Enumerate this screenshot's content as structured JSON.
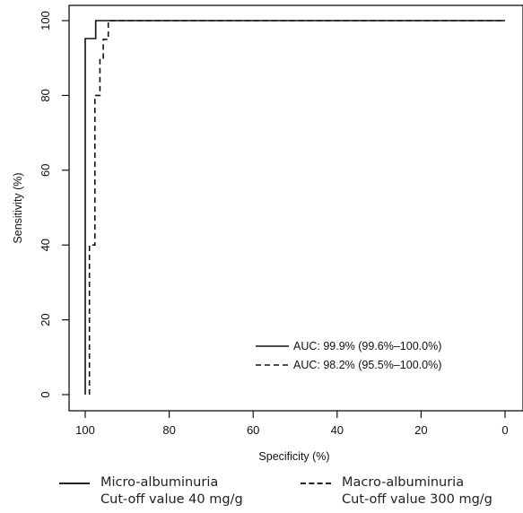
{
  "chart_data": {
    "type": "line",
    "xlabel": "Specificity (%)",
    "ylabel": "Sensitivity (%)",
    "xlim": [
      100,
      0
    ],
    "ylim": [
      0,
      100
    ],
    "x_reversed": true,
    "xticks": [
      "100",
      "80",
      "60",
      "40",
      "20",
      "0"
    ],
    "yticks": [
      "0",
      "20",
      "40",
      "60",
      "80",
      "100"
    ],
    "grid": false,
    "legend_position": "bottom-right",
    "series": [
      {
        "name": "AUC: 99.9% (99.6%–100.0%)",
        "style": "solid",
        "color": "#111111",
        "x": [
          100,
          100,
          100,
          97.5,
          97.5,
          0
        ],
        "y": [
          0,
          40,
          95.2,
          95.2,
          100,
          100
        ]
      },
      {
        "name": "AUC: 98.2% (95.5%–100.0%)",
        "style": "dashed",
        "color": "#111111",
        "x": [
          99,
          99,
          97.7,
          97.7,
          96.5,
          96.5,
          95.7,
          95.7,
          94.5,
          94.5,
          0
        ],
        "y": [
          0,
          40,
          40,
          80,
          80,
          90,
          90,
          95,
          95,
          100,
          100
        ]
      }
    ]
  },
  "bottom_legend": {
    "micro": {
      "line1": "Micro-albuminuria",
      "line2": "Cut-off value 40 mg/g"
    },
    "macro": {
      "line1": "Macro-albuminuria",
      "line2": "Cut-off value 300 mg/g"
    }
  }
}
